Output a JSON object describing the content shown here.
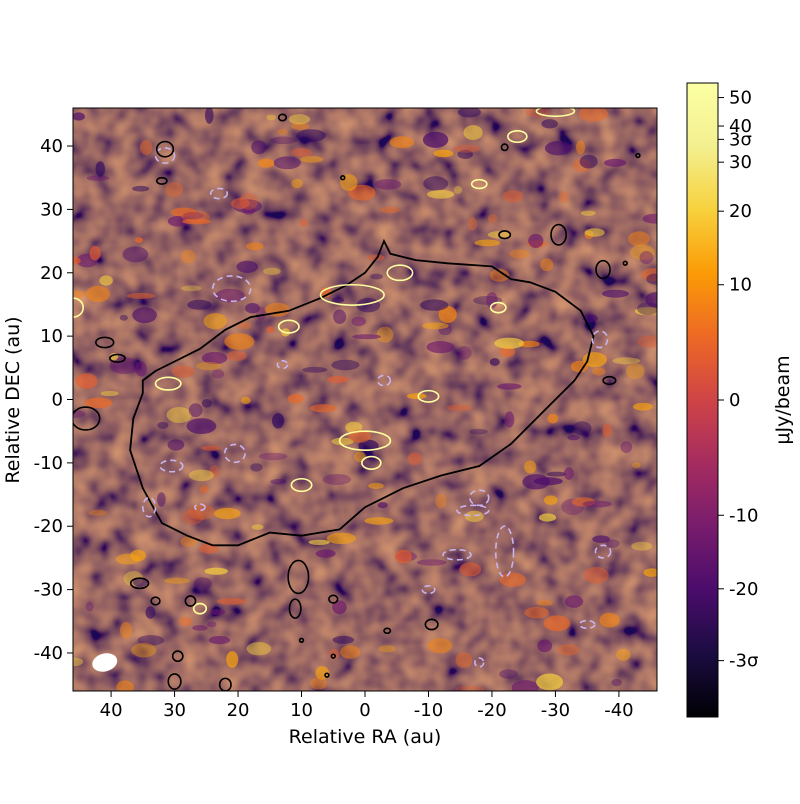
{
  "chart_data": {
    "type": "heatmap",
    "title": "",
    "xlabel": "Relative RA (au)",
    "ylabel": "Relative DEC (au)",
    "xlim": [
      46,
      -46
    ],
    "ylim": [
      -46,
      46
    ],
    "x_ticks": [
      40,
      30,
      20,
      10,
      0,
      -10,
      -20,
      -30,
      -40
    ],
    "y_ticks": [
      40,
      30,
      20,
      10,
      0,
      -10,
      -20,
      -30,
      -40
    ],
    "grid": false,
    "colormap": "inferno",
    "colorbar": {
      "label": "μJy/beam",
      "range": [
        -56,
        56
      ],
      "scale": "asinh",
      "ticks": [
        {
          "value": 50,
          "label": "50"
        },
        {
          "value": 40,
          "label": "40"
        },
        {
          "value": 36,
          "label": "3σ"
        },
        {
          "value": 30,
          "label": "30"
        },
        {
          "value": 20,
          "label": "20"
        },
        {
          "value": 10,
          "label": "10"
        },
        {
          "value": 0,
          "label": "0"
        },
        {
          "value": -10,
          "label": "-10"
        },
        {
          "value": -20,
          "label": "-20"
        },
        {
          "value": -36,
          "label": "-3σ"
        }
      ]
    },
    "contours": [
      {
        "level": "3σ",
        "color": "#ffffa0",
        "style": "solid"
      },
      {
        "level": "-3σ",
        "color": "#c8b4f0",
        "style": "dashed"
      },
      {
        "level": "disk outline",
        "color": "#000000",
        "style": "solid"
      }
    ],
    "disk_outline": [
      [
        -3,
        25
      ],
      [
        -4,
        23
      ],
      [
        -8,
        22
      ],
      [
        -13,
        21.5
      ],
      [
        -20,
        21
      ],
      [
        -23,
        19
      ],
      [
        -26,
        18.5
      ],
      [
        -30,
        17
      ],
      [
        -34,
        14
      ],
      [
        -36,
        10
      ],
      [
        -35,
        6
      ],
      [
        -33,
        3
      ],
      [
        -30,
        0
      ],
      [
        -27,
        -3
      ],
      [
        -23,
        -7
      ],
      [
        -18,
        -10.5
      ],
      [
        -12,
        -12
      ],
      [
        -6,
        -14
      ],
      [
        0,
        -17
      ],
      [
        4,
        -20.5
      ],
      [
        10,
        -21.5
      ],
      [
        15,
        -21
      ],
      [
        20,
        -23
      ],
      [
        24,
        -23
      ],
      [
        28,
        -21.5
      ],
      [
        32,
        -19.5
      ],
      [
        35,
        -14
      ],
      [
        37,
        -8
      ],
      [
        36.5,
        -3
      ],
      [
        35,
        1
      ],
      [
        35,
        3
      ],
      [
        33,
        4.5
      ],
      [
        30,
        6
      ],
      [
        26,
        8
      ],
      [
        22,
        11
      ],
      [
        18,
        13
      ],
      [
        12,
        14
      ],
      [
        7,
        16
      ],
      [
        3,
        18
      ],
      [
        0,
        20
      ],
      [
        -2,
        22.5
      ]
    ],
    "beam": {
      "x": 41,
      "y": -41.5,
      "major_au": 4,
      "minor_au": 2.8,
      "angle_deg": -15
    }
  }
}
